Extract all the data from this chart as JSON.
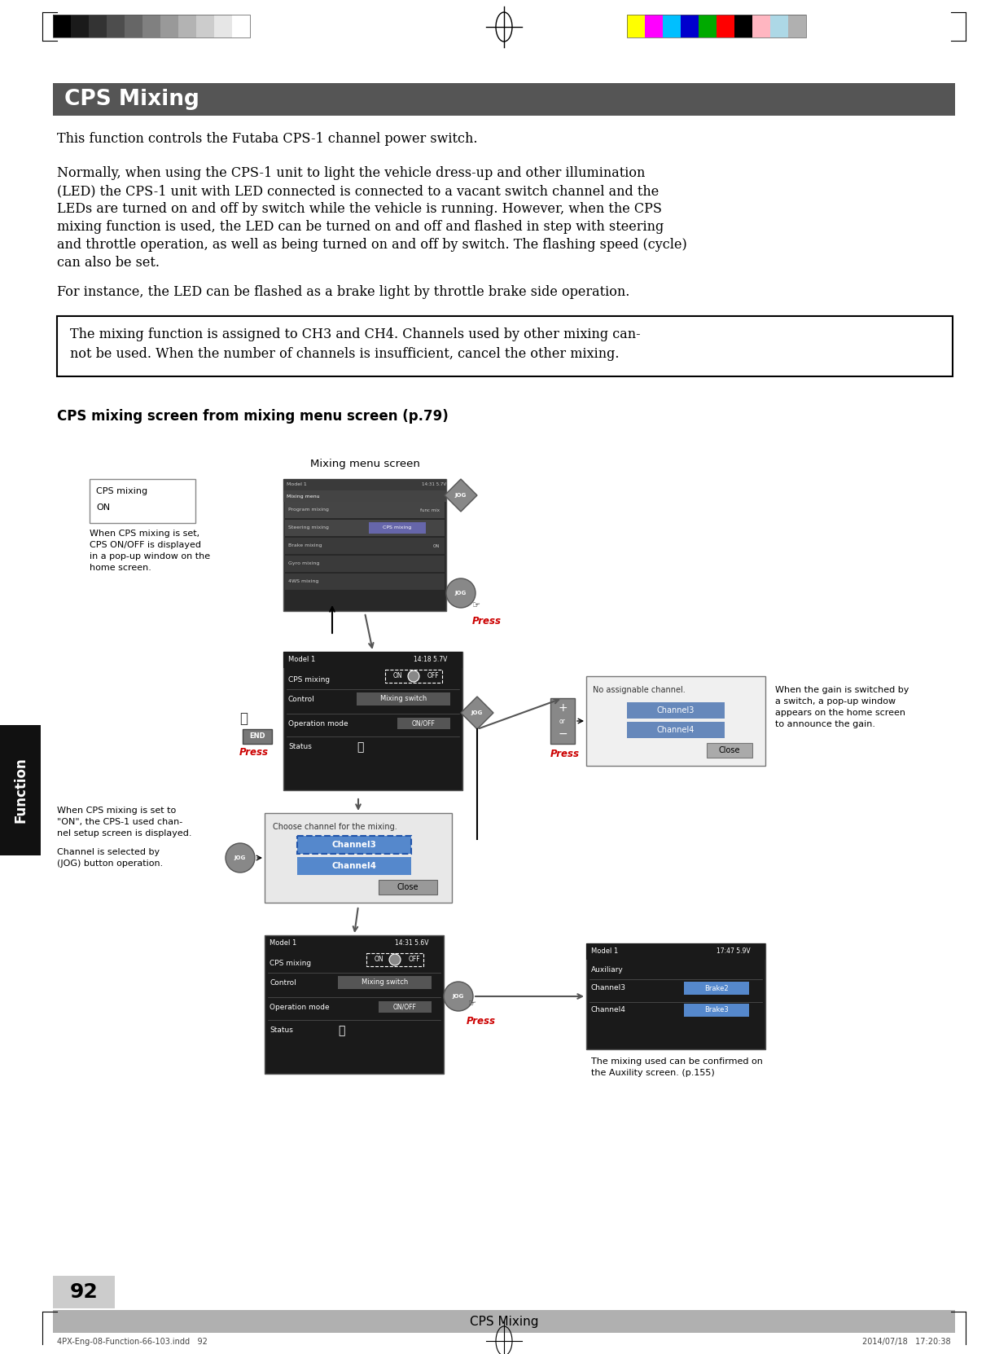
{
  "title": "CPS Mixing",
  "title_bg_color": "#555555",
  "title_text_color": "#ffffff",
  "body_bg_color": "#ffffff",
  "page_number": "92",
  "page_footer_text": "CPS Mixing",
  "footer_text_left": "4PX-Eng-08-Function-66-103.indd   92",
  "footer_text_right": "2014/07/18   17:20:38",
  "para1": "This function controls the Futaba CPS-1 channel power switch.",
  "para2_lines": [
    "Normally, when using the CPS-1 unit to light the vehicle dress-up and other illumination",
    "(LED) the CPS-1 unit with LED connected is connected to a vacant switch channel and the",
    "LEDs are turned on and off by switch while the vehicle is running. However, when the CPS",
    "mixing function is used, the LED can be turned on and off and flashed in step with steering",
    "and throttle operation, as well as being turned on and off by switch. The flashing speed (cycle)",
    "can also be set."
  ],
  "para3": "For instance, the LED can be flashed as a brake light by throttle brake side operation.",
  "boxed_line1": "The mixing function is assigned to CH3 and CH4. Channels used by other mixing can-",
  "boxed_line2": "not be used. When the number of channels is insufficient, cancel the other mixing.",
  "subtitle": "CPS mixing screen from mixing menu screen (p.79)",
  "mixing_menu_label": "Mixing menu screen",
  "function_sidebar": "Function",
  "page_number_bg": "#cccccc",
  "footer_bar_color": "#b0b0b0",
  "color_bars_left": [
    "#000000",
    "#1a1a1a",
    "#333333",
    "#4d4d4d",
    "#666666",
    "#808080",
    "#999999",
    "#b3b3b3",
    "#cccccc",
    "#e6e6e6",
    "#ffffff"
  ],
  "color_bars_right": [
    "#ffff00",
    "#ff00ff",
    "#00bfff",
    "#0000cd",
    "#00aa00",
    "#ff0000",
    "#000000",
    "#ffb6c1",
    "#add8e6",
    "#b0b0b0"
  ]
}
